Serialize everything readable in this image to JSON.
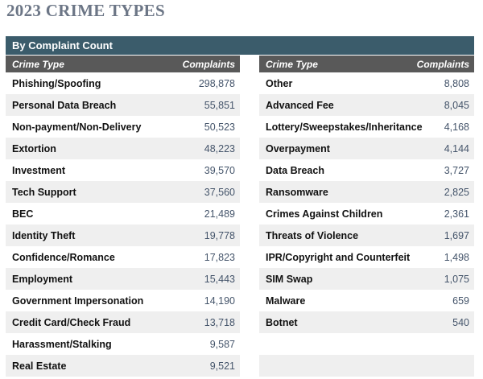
{
  "title": "2023 CRIME TYPES",
  "colors": {
    "title_text": "#6c7686",
    "caption_band_bg": "#3b5c6b",
    "column_header_bg": "#595959",
    "header_text": "#ffffff",
    "row_stripe": "#efefef",
    "crime_type_text": "#111111",
    "complaints_text": "#44546a"
  },
  "table": {
    "caption": "By Complaint Count",
    "columns": {
      "crime_type": "Crime Type",
      "complaints": "Complaints"
    },
    "left_rows": [
      {
        "crime_type": "Phishing/Spoofing",
        "complaints": "298,878"
      },
      {
        "crime_type": "Personal Data Breach",
        "complaints": "55,851"
      },
      {
        "crime_type": "Non-payment/Non-Delivery",
        "complaints": "50,523"
      },
      {
        "crime_type": "Extortion",
        "complaints": "48,223"
      },
      {
        "crime_type": "Investment",
        "complaints": "39,570"
      },
      {
        "crime_type": "Tech Support",
        "complaints": "37,560"
      },
      {
        "crime_type": "BEC",
        "complaints": "21,489"
      },
      {
        "crime_type": "Identity Theft",
        "complaints": "19,778"
      },
      {
        "crime_type": "Confidence/Romance",
        "complaints": "17,823"
      },
      {
        "crime_type": "Employment",
        "complaints": "15,443"
      },
      {
        "crime_type": "Government Impersonation",
        "complaints": "14,190"
      },
      {
        "crime_type": "Credit Card/Check Fraud",
        "complaints": "13,718"
      },
      {
        "crime_type": "Harassment/Stalking",
        "complaints": "9,587"
      },
      {
        "crime_type": "Real Estate",
        "complaints": "9,521"
      }
    ],
    "right_rows": [
      {
        "crime_type": "Other",
        "complaints": "8,808"
      },
      {
        "crime_type": "Advanced Fee",
        "complaints": "8,045"
      },
      {
        "crime_type": "Lottery/Sweepstakes/Inheritance",
        "complaints": "4,168"
      },
      {
        "crime_type": "Overpayment",
        "complaints": "4,144"
      },
      {
        "crime_type": "Data Breach",
        "complaints": "3,727"
      },
      {
        "crime_type": "Ransomware",
        "complaints": "2,825"
      },
      {
        "crime_type": "Crimes Against Children",
        "complaints": "2,361"
      },
      {
        "crime_type": "Threats of Violence",
        "complaints": "1,697"
      },
      {
        "crime_type": "IPR/Copyright and Counterfeit",
        "complaints": "1,498"
      },
      {
        "crime_type": "SIM Swap",
        "complaints": "1,075"
      },
      {
        "crime_type": "Malware",
        "complaints": "659"
      },
      {
        "crime_type": "Botnet",
        "complaints": "540"
      },
      {
        "crime_type": "",
        "complaints": ""
      },
      {
        "crime_type": "",
        "complaints": ""
      }
    ]
  }
}
